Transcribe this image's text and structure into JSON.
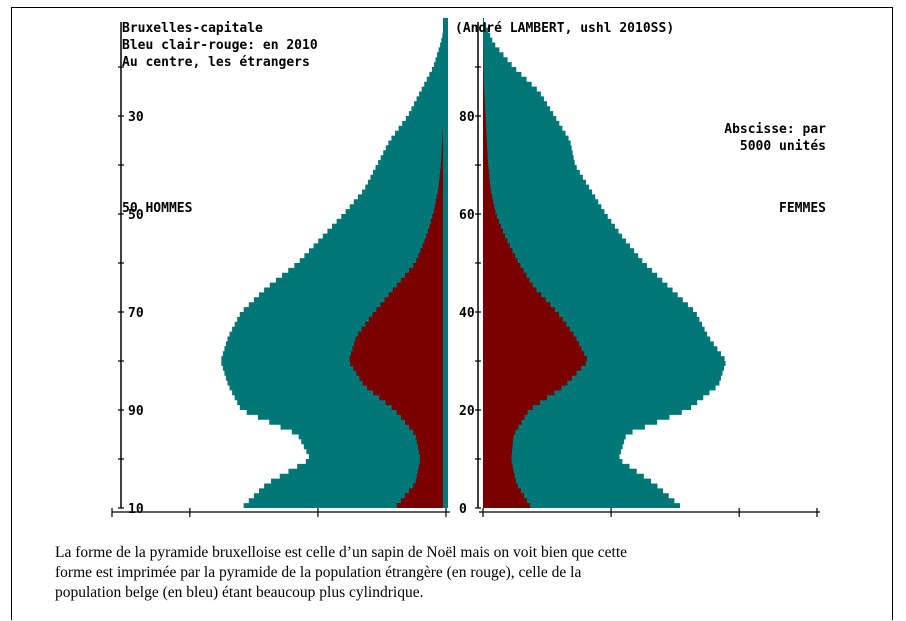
{
  "chart_data": {
    "type": "population-pyramid",
    "title_lines": [
      "Bruxelles-capitale",
      "Bleu clair-rouge: en 2010",
      "Au centre, les étrangers"
    ],
    "source": "(André LAMBERT, ushl 2010SS)",
    "abscissa_note_lines": [
      "Abscisse: par",
      "5000 unités"
    ],
    "left_label": "50 HOMMES",
    "right_label": "FEMMES",
    "left_axis_labels": [
      {
        "label": "10",
        "pos": 0
      },
      {
        "label": "90",
        "pos": 0.2
      },
      {
        "label": "70",
        "pos": 0.4
      },
      {
        "label": "50",
        "pos": 0.6
      },
      {
        "label": "30",
        "pos": 0.8
      }
    ],
    "right_axis_labels": [
      {
        "label": "0",
        "pos": 0
      },
      {
        "label": "20",
        "pos": 0.2
      },
      {
        "label": "40",
        "pos": 0.4
      },
      {
        "label": "60",
        "pos": 0.6
      },
      {
        "label": "80",
        "pos": 0.8
      }
    ],
    "age_max": 100,
    "x_max": 13000,
    "series": [
      {
        "name": "Belges (en bleu)",
        "color": "#007777"
      },
      {
        "name": "Étrangers (en rouge)",
        "color": "#7a0000"
      }
    ],
    "ages": [
      0,
      5,
      10,
      15,
      20,
      25,
      30,
      35,
      40,
      45,
      50,
      55,
      60,
      65,
      70,
      75,
      80,
      85,
      90,
      95,
      100
    ],
    "men_total": [
      8000,
      7000,
      5300,
      5800,
      8000,
      8500,
      8800,
      8500,
      8000,
      7000,
      5800,
      4900,
      4000,
      3200,
      2700,
      2200,
      1500,
      1000,
      500,
      200,
      0
    ],
    "men_foreign": [
      2000,
      1200,
      1000,
      1200,
      2000,
      3200,
      3800,
      3500,
      2800,
      2000,
      1200,
      800,
      500,
      300,
      200,
      150,
      100,
      50,
      20,
      5,
      0
    ],
    "women_total": [
      7800,
      6700,
      5300,
      5600,
      8000,
      9200,
      9500,
      8800,
      8300,
      7300,
      6300,
      5500,
      4800,
      4200,
      3600,
      3400,
      2800,
      2200,
      1200,
      400,
      0
    ],
    "women_foreign": [
      1900,
      1300,
      1100,
      1200,
      1800,
      3200,
      4100,
      3600,
      2900,
      2000,
      1400,
      900,
      500,
      300,
      200,
      150,
      100,
      50,
      20,
      5,
      0
    ],
    "xticks": [
      0,
      5000,
      10000
    ]
  },
  "caption": {
    "line1": "La forme de la pyramide bruxelloise est celle d’un sapin de Noël mais on voit bien que cette",
    "line2": "forme est imprimée par la pyramide de la  population étrangère (en rouge), celle de la",
    "line3": "population belge (en bleu) étant beaucoup plus cylindrique."
  }
}
